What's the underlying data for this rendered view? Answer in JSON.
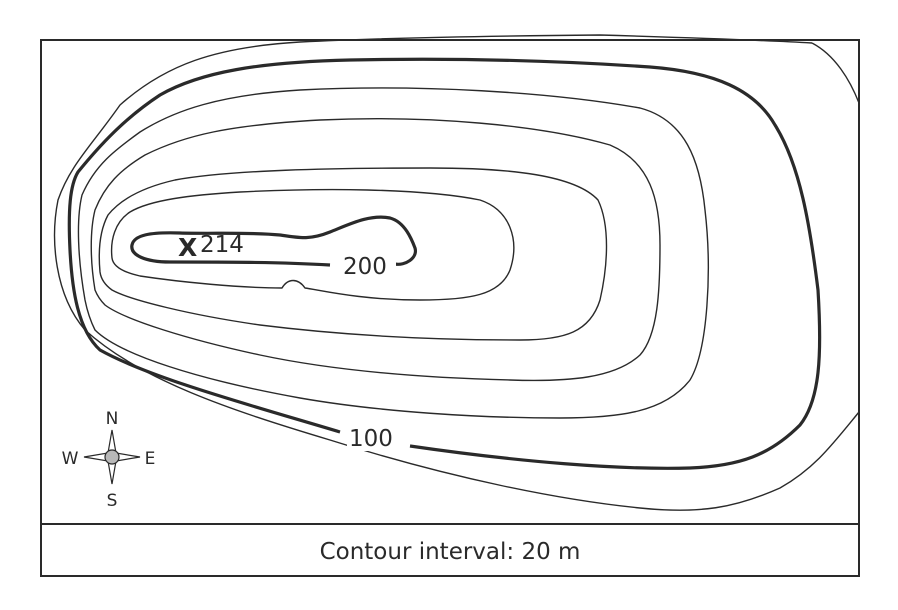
{
  "map": {
    "labels": {
      "contour_100": "100",
      "contour_200": "200",
      "peak_marker": "X",
      "peak_elevation": "214"
    },
    "compass": {
      "north": "N",
      "south": "S",
      "east": "E",
      "west": "W"
    },
    "legend": {
      "contour_interval": "Contour interval: 20 m"
    },
    "colors": {
      "line": "#2a2a2a",
      "background": "#ffffff",
      "compass_fill": "#b8b8b8"
    }
  }
}
